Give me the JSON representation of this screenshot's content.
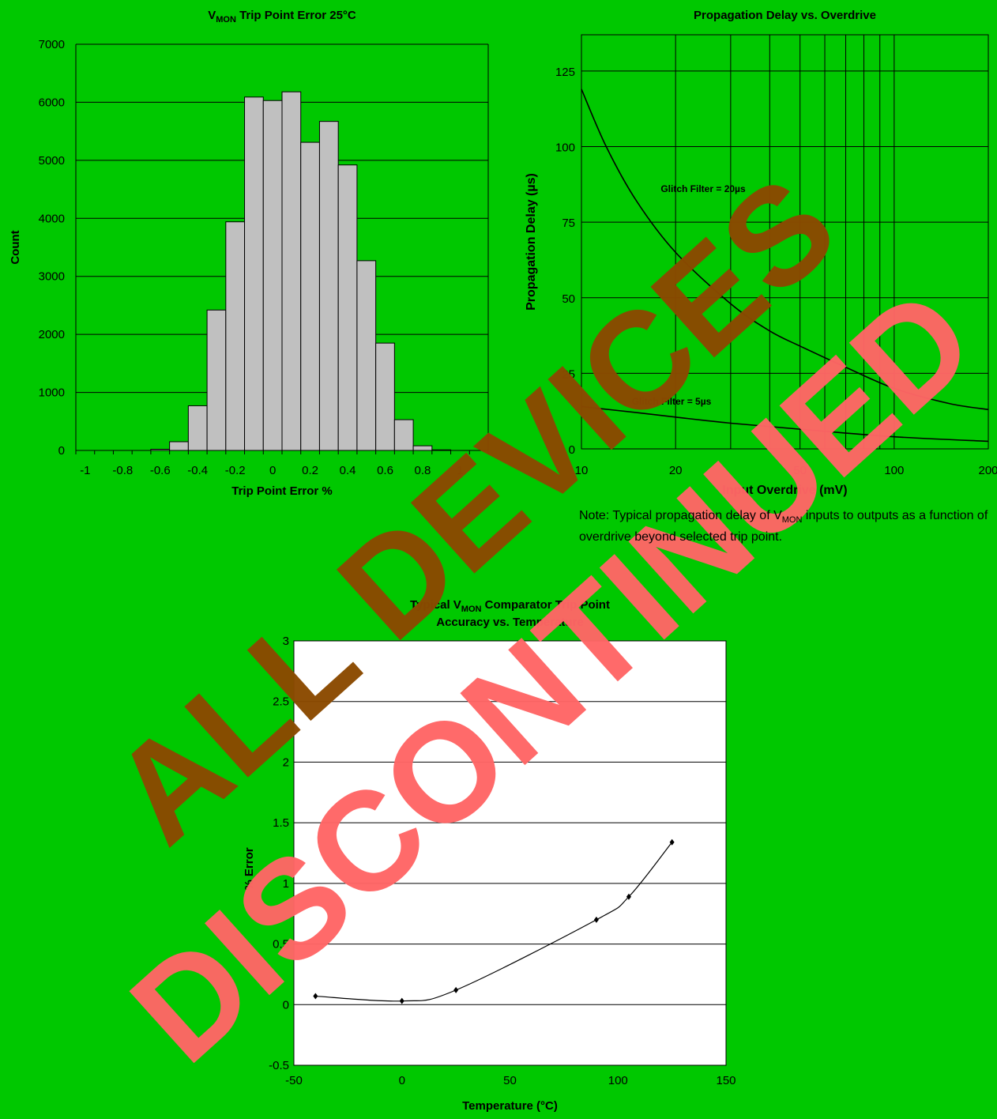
{
  "chart_data": [
    {
      "type": "bar",
      "title_main": "V",
      "title_sub": "MON",
      "title_rest": " Trip Point Error 25°C",
      "xlabel": "Trip Point Error %",
      "ylabel": "Count",
      "xlim": [
        -1.05,
        1.15
      ],
      "ylim": [
        0,
        7000
      ],
      "xticks": [
        -1,
        -0.8,
        -0.6,
        -0.4,
        -0.2,
        0,
        0.2,
        0.4,
        0.6,
        0.8,
        1
      ],
      "yticks": [
        0,
        1000,
        2000,
        3000,
        4000,
        5000,
        6000,
        7000
      ],
      "grid": "horizontal",
      "bin_width": 0.1,
      "bin_centers": [
        -0.6,
        -0.5,
        -0.4,
        -0.3,
        -0.2,
        -0.1,
        0.0,
        0.1,
        0.2,
        0.3,
        0.4,
        0.5,
        0.6,
        0.7,
        0.8,
        0.9
      ],
      "values": [
        20,
        150,
        770,
        2420,
        3940,
        6090,
        6030,
        6180,
        5310,
        5670,
        4920,
        3270,
        1850,
        530,
        80,
        10
      ]
    },
    {
      "type": "line",
      "title": "Propagation Delay vs. Overdrive",
      "xlabel": "Input Overdrive (mV)",
      "ylabel": "Propagation Delay (µs)",
      "xscale": "log",
      "xlim": [
        10,
        200
      ],
      "ylim": [
        0,
        137
      ],
      "xtick_labels": [
        "10",
        "20",
        "50",
        "100",
        "200"
      ],
      "xticks": [
        10,
        20,
        50,
        100,
        200
      ],
      "x_gridlines": [
        10,
        20,
        30,
        40,
        50,
        60,
        70,
        80,
        90,
        100,
        200
      ],
      "yticks": [
        0,
        25,
        50,
        75,
        100,
        125
      ],
      "grid": "both",
      "series": [
        {
          "name": "Glitch Filter = 20µs",
          "x": [
            10,
            12,
            15,
            20,
            30,
            40,
            50,
            70,
            100,
            150,
            200
          ],
          "y": [
            119,
            100,
            82,
            65,
            48,
            39,
            34,
            27,
            20,
            15,
            13
          ]
        },
        {
          "name": "Glitch Filter = 5µs",
          "x": [
            10,
            15,
            20,
            30,
            50,
            100,
            200
          ],
          "y": [
            14,
            12,
            10.5,
            8.5,
            6.5,
            4,
            2.5
          ]
        }
      ]
    },
    {
      "type": "scatter",
      "title_line1_a": "Typical V",
      "title_line1_sub": "MON",
      "title_line1_b": " Comparator Trip Point",
      "title_line2": "Accuracy vs. Temperature",
      "xlabel": "Temperature (°C)",
      "ylabel": "% Error",
      "xlim": [
        -50,
        150
      ],
      "ylim": [
        -0.5,
        3
      ],
      "xticks": [
        -50,
        0,
        50,
        100,
        150
      ],
      "yticks": [
        -0.5,
        0,
        0.5,
        1,
        1.5,
        2,
        2.5,
        3
      ],
      "grid": "horizontal",
      "x": [
        -40,
        0,
        25,
        90,
        105,
        125
      ],
      "y": [
        0.07,
        0.03,
        0.12,
        0.7,
        0.89,
        1.34
      ]
    }
  ],
  "note": {
    "prefix": "Note: Typical propagation delay of V",
    "sub": "MON",
    "suffix": " inputs to outputs as a function of overdrive beyond selected trip point."
  },
  "watermark": {
    "line1": "ALL DEVICES",
    "line2": "DISCONTINUED",
    "color_line1": "#8b4a00",
    "color_line2": "#ff6666"
  },
  "colors": {
    "background": "#00c800",
    "bar_fill": "#c0c0c0",
    "plot_white": "#ffffff"
  }
}
